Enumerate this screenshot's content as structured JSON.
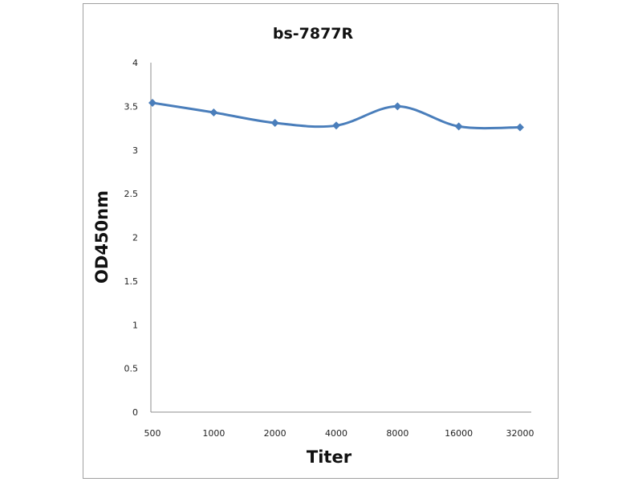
{
  "chart_data": {
    "type": "line",
    "title": "bs-7877R",
    "xlabel": "Titer",
    "ylabel": "OD450nm",
    "categories": [
      "500",
      "1000",
      "2000",
      "4000",
      "8000",
      "16000",
      "32000"
    ],
    "series": [
      {
        "values": [
          3.54,
          3.43,
          3.31,
          3.28,
          3.5,
          3.27,
          3.26
        ],
        "color": "#4a7ebb",
        "marker": "diamond",
        "smooth": true
      }
    ],
    "ylim": [
      0,
      4
    ],
    "yticks": [
      "0",
      "0.5",
      "1",
      "1.5",
      "2",
      "2.5",
      "3",
      "3.5",
      "4"
    ],
    "grid": false,
    "legend": "none"
  }
}
